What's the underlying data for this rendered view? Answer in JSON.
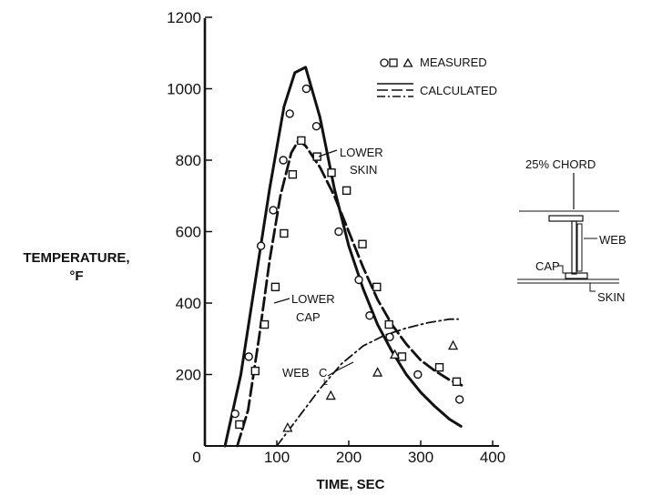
{
  "chart_data": {
    "type": "line",
    "xlabel": "TIME, SEC",
    "ylabel_line1": "TEMPERATURE,",
    "ylabel_line2": "°F",
    "xlim": [
      0,
      400
    ],
    "ylim": [
      0,
      1200
    ],
    "x_ticks": [
      0,
      100,
      200,
      300,
      400
    ],
    "y_ticks": [
      200,
      400,
      600,
      800,
      1000,
      1200
    ],
    "grid": false,
    "legend": {
      "placement": "top-right",
      "measured_symbols": "o□ △",
      "measured_label": "MEASURED",
      "calculated_label": "CALCULATED"
    },
    "calculated": [
      {
        "key": "lower-skin",
        "style": "solid",
        "x": [
          28,
          50,
          70,
          90,
          110,
          125,
          140,
          160,
          180,
          200,
          220,
          240,
          260,
          280,
          300,
          320,
          340,
          356
        ],
        "y": [
          0,
          200,
          460,
          720,
          950,
          1045,
          1060,
          920,
          720,
          560,
          440,
          340,
          265,
          200,
          150,
          110,
          75,
          55
        ]
      },
      {
        "key": "lower-cap",
        "style": "long-dash",
        "x": [
          45,
          60,
          75,
          90,
          105,
          120,
          130,
          140,
          160,
          180,
          200,
          220,
          240,
          260,
          280,
          300,
          320,
          340,
          357
        ],
        "y": [
          0,
          100,
          300,
          520,
          700,
          820,
          855,
          840,
          780,
          700,
          600,
          500,
          410,
          340,
          285,
          240,
          210,
          185,
          170
        ]
      },
      {
        "key": "web-cl",
        "style": "dash-dot",
        "x": [
          100,
          130,
          160,
          190,
          220,
          250,
          280,
          310,
          340,
          352
        ],
        "y": [
          0,
          80,
          160,
          230,
          280,
          310,
          330,
          345,
          355,
          355
        ]
      }
    ],
    "measured": [
      {
        "key": "lower-skin",
        "marker": "circle",
        "x": [
          42,
          61,
          78,
          95,
          109,
          118,
          141,
          155,
          186,
          214,
          229,
          257,
          296,
          354
        ],
        "y": [
          90,
          250,
          560,
          660,
          800,
          930,
          1000,
          895,
          600,
          465,
          365,
          305,
          200,
          130
        ]
      },
      {
        "key": "lower-cap",
        "marker": "square",
        "x": [
          48,
          70,
          83,
          98,
          110,
          122,
          134,
          156,
          176,
          197,
          219,
          239,
          256,
          274,
          326,
          350
        ],
        "y": [
          60,
          210,
          340,
          445,
          595,
          760,
          855,
          810,
          765,
          715,
          565,
          445,
          340,
          250,
          220,
          180
        ]
      },
      {
        "key": "web-cl",
        "marker": "triangle",
        "x": [
          115,
          175,
          240,
          264,
          345
        ],
        "y": [
          50,
          140,
          205,
          255,
          280
        ]
      }
    ],
    "annotations": [
      {
        "key": "lower-skin",
        "lines": [
          "LOWER",
          "SKIN"
        ]
      },
      {
        "key": "lower-cap",
        "lines": [
          "LOWER",
          "CAP"
        ]
      },
      {
        "key": "web-cl",
        "text": "WEB",
        "cl_letters": [
          "C",
          "L"
        ]
      }
    ],
    "inset": {
      "chord_label": "25% CHORD",
      "web_label": "WEB",
      "cap_label": "CAP",
      "skin_label": "SKIN"
    }
  }
}
